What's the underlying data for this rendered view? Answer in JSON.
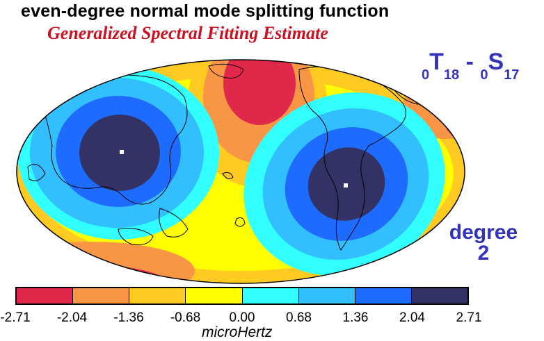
{
  "title": "even-degree normal mode splitting function",
  "subtitle": "Generalized Spectral Fitting Estimate",
  "mode_label": {
    "pre1": "0",
    "main1": "T",
    "sub1": "18",
    "dash": " - ",
    "pre2": "0",
    "main2": "S",
    "sub2": "17"
  },
  "degree_label": "degree",
  "degree_value": "2",
  "colorbar": {
    "colors": [
      "#e0284a",
      "#f99645",
      "#ffcb23",
      "#ffff00",
      "#32ffff",
      "#32bfff",
      "#1e6bff",
      "#323264"
    ],
    "ticks": [
      "-2.71",
      "-2.04",
      "-1.36",
      "-0.68",
      "0.00",
      "0.68",
      "1.36",
      "2.04",
      "2.71"
    ],
    "unit": "microHertz"
  },
  "projection": "Hammer/Mollweide global map, Pacific-centered",
  "colors": {
    "title": "#000000",
    "subtitle": "#cc1122",
    "labels": "#3333bb"
  }
}
